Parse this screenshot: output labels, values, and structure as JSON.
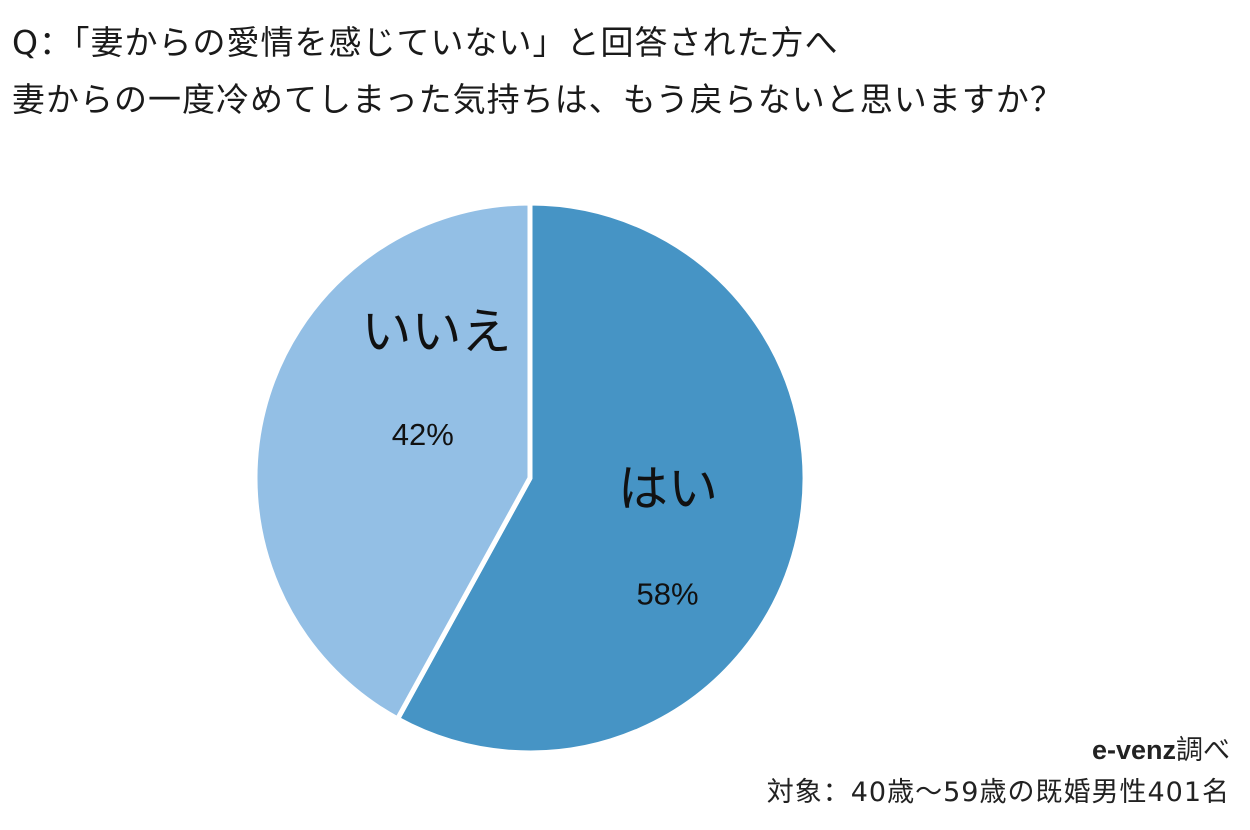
{
  "question": {
    "line1": "Q：「妻からの愛情を感じていない」と回答された方へ",
    "line2": "妻からの一度冷めてしまった気持ちは、もう戻らないと思いますか？"
  },
  "chart_data": {
    "type": "pie",
    "title": "",
    "slices": [
      {
        "label": "はい",
        "value": 58,
        "value_label": "58%",
        "color": "#4694c5"
      },
      {
        "label": "いいえ",
        "value": 42,
        "value_label": "42%",
        "color": "#93bfe5"
      }
    ],
    "start_angle": "top (12 o'clock)",
    "direction": "clockwise",
    "legend": "none (labels inside slices)"
  },
  "footer": {
    "brand": "e-venz",
    "brand_suffix": "調べ",
    "target": "対象：40歳〜59歳の既婚男性401名"
  }
}
